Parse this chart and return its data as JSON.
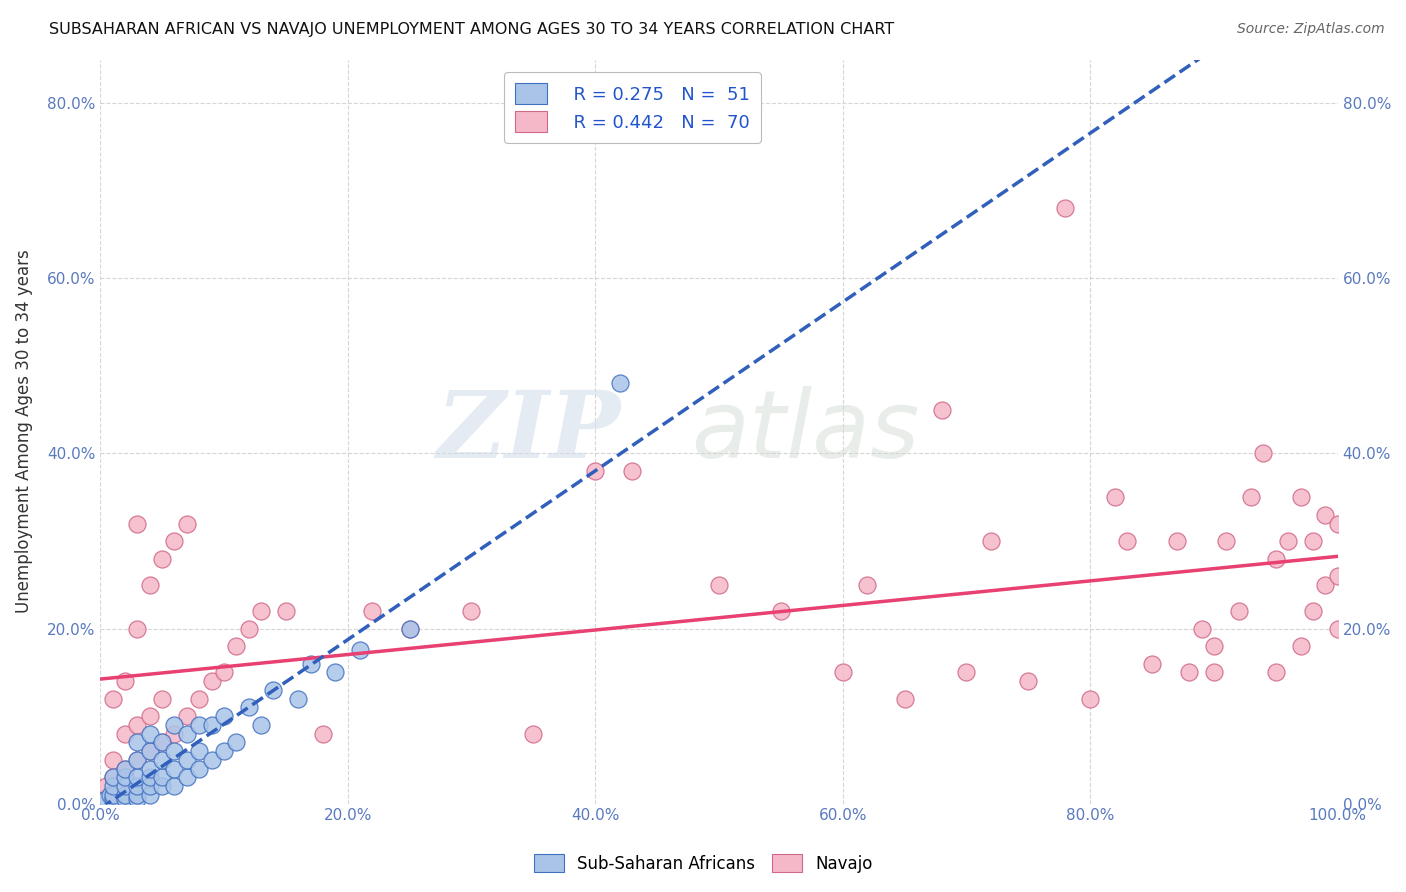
{
  "title": "SUBSAHARAN AFRICAN VS NAVAJO UNEMPLOYMENT AMONG AGES 30 TO 34 YEARS CORRELATION CHART",
  "source": "Source: ZipAtlas.com",
  "ylabel": "Unemployment Among Ages 30 to 34 years",
  "xlim": [
    0,
    1.0
  ],
  "ylim": [
    0,
    0.85
  ],
  "xticks": [
    0.0,
    0.2,
    0.4,
    0.6,
    0.8,
    1.0
  ],
  "yticks": [
    0.0,
    0.2,
    0.4,
    0.6,
    0.8
  ],
  "xtick_labels": [
    "0.0%",
    "20.0%",
    "40.0%",
    "60.0%",
    "80.0%",
    "100.0%"
  ],
  "ytick_labels": [
    "0.0%",
    "20.0%",
    "40.0%",
    "60.0%",
    "80.0%"
  ],
  "legend_r_blue": "R = 0.275",
  "legend_n_blue": "N =  51",
  "legend_r_pink": "R = 0.442",
  "legend_n_pink": "N =  70",
  "blue_color": "#aac4e8",
  "pink_color": "#f5b8c8",
  "blue_line_color": "#3060bb",
  "pink_line_color": "#e84070",
  "watermark_zip": "ZIP",
  "watermark_atlas": "atlas",
  "background_color": "#ffffff",
  "grid_color": "#cccccc",
  "blue_scatter_x": [
    0.005,
    0.008,
    0.01,
    0.01,
    0.01,
    0.01,
    0.02,
    0.02,
    0.02,
    0.02,
    0.02,
    0.03,
    0.03,
    0.03,
    0.03,
    0.03,
    0.03,
    0.04,
    0.04,
    0.04,
    0.04,
    0.04,
    0.04,
    0.05,
    0.05,
    0.05,
    0.05,
    0.06,
    0.06,
    0.06,
    0.06,
    0.07,
    0.07,
    0.07,
    0.08,
    0.08,
    0.08,
    0.09,
    0.09,
    0.1,
    0.1,
    0.11,
    0.12,
    0.13,
    0.14,
    0.16,
    0.17,
    0.19,
    0.21,
    0.25,
    0.42
  ],
  "blue_scatter_y": [
    0.005,
    0.01,
    0.005,
    0.01,
    0.02,
    0.03,
    0.005,
    0.01,
    0.02,
    0.03,
    0.04,
    0.005,
    0.01,
    0.02,
    0.03,
    0.05,
    0.07,
    0.01,
    0.02,
    0.03,
    0.04,
    0.06,
    0.08,
    0.02,
    0.03,
    0.05,
    0.07,
    0.02,
    0.04,
    0.06,
    0.09,
    0.03,
    0.05,
    0.08,
    0.04,
    0.06,
    0.09,
    0.05,
    0.09,
    0.06,
    0.1,
    0.07,
    0.11,
    0.09,
    0.13,
    0.12,
    0.16,
    0.15,
    0.175,
    0.2,
    0.48
  ],
  "pink_scatter_x": [
    0.005,
    0.01,
    0.01,
    0.01,
    0.02,
    0.02,
    0.02,
    0.03,
    0.03,
    0.03,
    0.03,
    0.04,
    0.04,
    0.04,
    0.05,
    0.05,
    0.05,
    0.06,
    0.06,
    0.07,
    0.07,
    0.08,
    0.09,
    0.1,
    0.11,
    0.12,
    0.13,
    0.15,
    0.18,
    0.22,
    0.25,
    0.3,
    0.35,
    0.4,
    0.43,
    0.5,
    0.55,
    0.6,
    0.62,
    0.65,
    0.68,
    0.7,
    0.72,
    0.75,
    0.78,
    0.8,
    0.82,
    0.83,
    0.85,
    0.87,
    0.88,
    0.89,
    0.9,
    0.9,
    0.91,
    0.92,
    0.93,
    0.94,
    0.95,
    0.95,
    0.96,
    0.97,
    0.97,
    0.98,
    0.98,
    0.99,
    0.99,
    1.0,
    1.0,
    1.0
  ],
  "pink_scatter_y": [
    0.02,
    0.03,
    0.05,
    0.12,
    0.04,
    0.08,
    0.14,
    0.05,
    0.09,
    0.2,
    0.32,
    0.06,
    0.1,
    0.25,
    0.07,
    0.12,
    0.28,
    0.08,
    0.3,
    0.1,
    0.32,
    0.12,
    0.14,
    0.15,
    0.18,
    0.2,
    0.22,
    0.22,
    0.08,
    0.22,
    0.2,
    0.22,
    0.08,
    0.38,
    0.38,
    0.25,
    0.22,
    0.15,
    0.25,
    0.12,
    0.45,
    0.15,
    0.3,
    0.14,
    0.68,
    0.12,
    0.35,
    0.3,
    0.16,
    0.3,
    0.15,
    0.2,
    0.15,
    0.18,
    0.3,
    0.22,
    0.35,
    0.4,
    0.15,
    0.28,
    0.3,
    0.18,
    0.35,
    0.22,
    0.3,
    0.25,
    0.33,
    0.26,
    0.2,
    0.32
  ]
}
